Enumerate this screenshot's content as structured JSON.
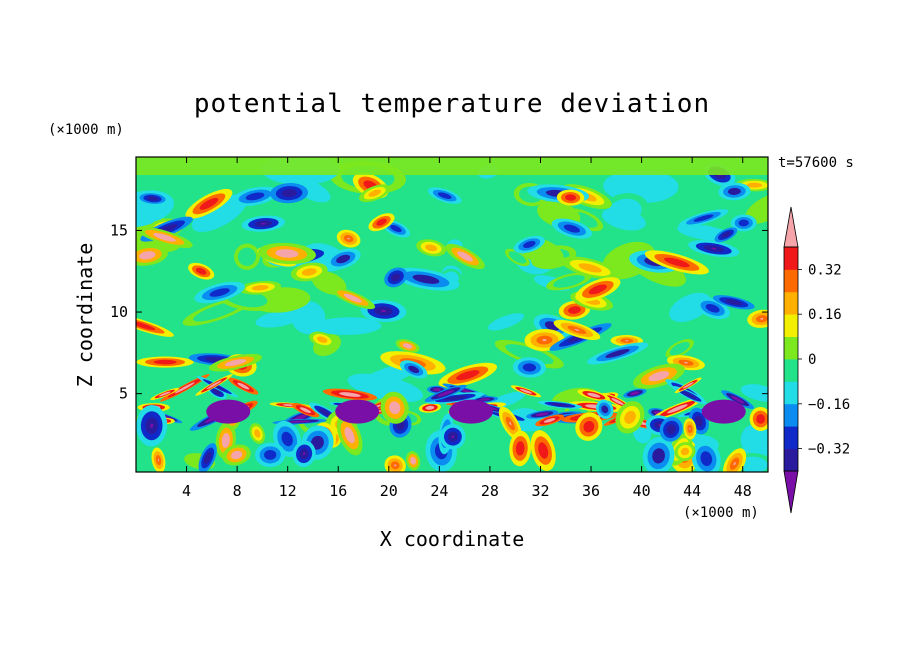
{
  "chart_data": {
    "type": "heatmap",
    "title": "potential temperature deviation",
    "xlabel": "X coordinate",
    "ylabel": "Z coordinate",
    "x_unit": "(×1000 m)",
    "y_unit": "(×1000 m)",
    "time_label": "t=57600 s",
    "xlim": [
      0,
      50
    ],
    "ylim": [
      0.2,
      19.5
    ],
    "x_ticks": [
      4,
      8,
      12,
      16,
      20,
      24,
      28,
      32,
      36,
      40,
      44,
      48
    ],
    "y_ticks": [
      5,
      10,
      15
    ],
    "colorbar": {
      "levels": [
        -0.4,
        -0.32,
        -0.24,
        -0.16,
        -0.08,
        0,
        0.08,
        0.16,
        0.24,
        0.32,
        0.4
      ],
      "labeled": [
        {
          "value": 0.32,
          "label": "0.32"
        },
        {
          "value": 0.16,
          "label": "0.16"
        },
        {
          "value": 0,
          "label": "0"
        },
        {
          "value": -0.16,
          "label": "−0.16"
        },
        {
          "value": -0.32,
          "label": "−0.32"
        }
      ],
      "colors": [
        "#7a0fa8",
        "#2a1a9e",
        "#0f2ac8",
        "#0a8cf0",
        "#22dce6",
        "#22e28a",
        "#7ce81e",
        "#f2f000",
        "#ffb000",
        "#ff6a00",
        "#f01818",
        "#f5a5aa"
      ]
    }
  }
}
